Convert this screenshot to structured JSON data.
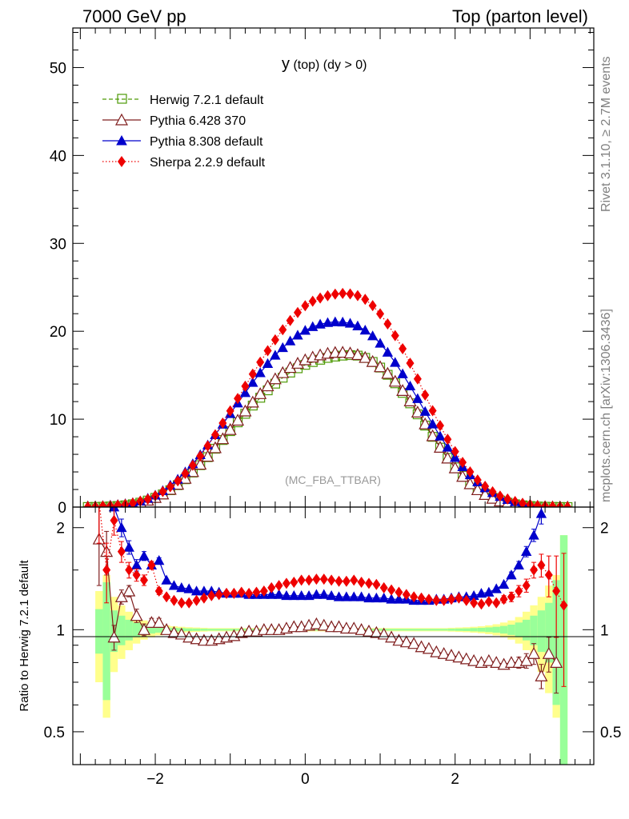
{
  "header": {
    "left": "7000 GeV pp",
    "right": "Top (parton level)"
  },
  "side": {
    "rivet": "Rivet 3.1.10, ≥ 2.7M events",
    "mcplots": "mcplots.cern.ch [arXiv:1306.3436]"
  },
  "colors": {
    "herwig": "#4e9a06",
    "p6": "#7f1d1d",
    "p8": "#0000cc",
    "sherpa": "#ee0000",
    "band_yellow": "#ffff8c",
    "band_green": "#99ff99"
  },
  "chart_data": [
    {
      "type": "line",
      "title": "y (top) (dy > 0)",
      "watermark": "(MC_FBA_TTBAR)",
      "xlim": [
        -3.1,
        3.85
      ],
      "ylim": [
        0,
        54.5
      ],
      "yticks": [
        "0",
        "10",
        "20",
        "30",
        "40",
        "50"
      ],
      "yticks_values": [
        0,
        10,
        20,
        30,
        40,
        50
      ],
      "legend": [
        "Herwig 7.2.1 default",
        "Pythia 6.428 370",
        "Pythia 8.308 default",
        "Sherpa 2.2.9 default"
      ],
      "x": [
        -2.9,
        -2.8,
        -2.7,
        -2.6,
        -2.5,
        -2.4,
        -2.3,
        -2.2,
        -2.1,
        -2.0,
        -1.9,
        -1.8,
        -1.7,
        -1.6,
        -1.5,
        -1.4,
        -1.3,
        -1.2,
        -1.1,
        -1.0,
        -0.9,
        -0.8,
        -0.7,
        -0.6,
        -0.5,
        -0.4,
        -0.3,
        -0.2,
        -0.1,
        0.0,
        0.1,
        0.2,
        0.3,
        0.4,
        0.5,
        0.6,
        0.7,
        0.8,
        0.9,
        1.0,
        1.1,
        1.2,
        1.3,
        1.4,
        1.5,
        1.6,
        1.7,
        1.8,
        1.9,
        2.0,
        2.1,
        2.2,
        2.3,
        2.4,
        2.5,
        2.6,
        2.7,
        2.8,
        2.9,
        3.0,
        3.1,
        3.2,
        3.3,
        3.4,
        3.5
      ],
      "series": [
        {
          "name": "Herwig 7.2.1 default",
          "values": [
            0.01,
            0.02,
            0.04,
            0.07,
            0.12,
            0.2,
            0.32,
            0.5,
            0.74,
            1.05,
            1.44,
            1.92,
            2.5,
            3.17,
            3.93,
            4.77,
            5.68,
            6.64,
            7.63,
            8.64,
            9.64,
            10.61,
            11.55,
            12.44,
            13.28,
            14.04,
            14.72,
            15.3,
            15.79,
            16.18,
            16.5,
            16.76,
            16.97,
            17.12,
            17.23,
            17.29,
            17.23,
            16.97,
            16.51,
            15.87,
            15.05,
            14.08,
            12.99,
            11.8,
            10.55,
            9.27,
            7.99,
            6.76,
            5.59,
            4.52,
            3.57,
            2.75,
            2.07,
            1.51,
            1.07,
            0.74,
            0.5,
            0.32,
            0.2,
            0.12,
            0.07,
            0.04,
            0.02,
            0.01,
            0.0
          ]
        },
        {
          "name": "Pythia 6.428 370",
          "values": [
            0.01,
            0.02,
            0.04,
            0.09,
            0.16,
            0.25,
            0.37,
            0.54,
            0.77,
            1.08,
            1.48,
            2.0,
            2.58,
            3.26,
            4.02,
            4.86,
            5.77,
            6.74,
            7.76,
            8.81,
            9.87,
            10.92,
            11.93,
            12.89,
            13.78,
            14.58,
            15.28,
            15.87,
            16.35,
            16.74,
            17.05,
            17.3,
            17.48,
            17.58,
            17.6,
            17.52,
            17.33,
            17.01,
            16.55,
            15.95,
            15.2,
            14.3,
            13.25,
            12.07,
            10.79,
            9.45,
            8.1,
            6.79,
            5.56,
            4.45,
            3.48,
            2.64,
            1.96,
            1.42,
            0.99,
            0.68,
            0.45,
            0.28,
            0.17,
            0.1,
            0.06,
            0.03,
            0.02,
            0.01,
            0.0
          ]
        },
        {
          "name": "Pythia 8.308 default",
          "values": [
            0.03,
            0.06,
            0.12,
            0.2,
            0.25,
            0.34,
            0.47,
            0.69,
            0.99,
            1.35,
            1.87,
            2.48,
            3.16,
            3.99,
            4.92,
            5.95,
            7.06,
            8.22,
            9.42,
            10.63,
            11.83,
            13.01,
            14.17,
            15.28,
            16.32,
            17.27,
            18.13,
            18.89,
            19.55,
            20.1,
            20.52,
            20.8,
            20.98,
            21.07,
            21.04,
            20.91,
            20.6,
            20.12,
            19.47,
            18.63,
            17.61,
            16.45,
            15.15,
            13.77,
            12.33,
            10.87,
            9.44,
            8.07,
            6.8,
            5.63,
            4.58,
            3.66,
            2.86,
            2.19,
            1.64,
            1.2,
            0.86,
            0.6,
            0.4,
            0.28,
            0.2,
            0.12,
            0.07,
            0.04,
            0.02
          ]
        },
        {
          "name": "Sherpa 2.2.9 default",
          "values": [
            0.02,
            0.05,
            0.1,
            0.14,
            0.22,
            0.3,
            0.45,
            0.67,
            0.9,
            1.28,
            1.76,
            2.31,
            2.98,
            3.82,
            4.75,
            5.8,
            6.96,
            8.22,
            9.55,
            10.94,
            12.35,
            13.75,
            15.13,
            16.48,
            17.79,
            19.03,
            20.18,
            21.22,
            22.13,
            22.9,
            23.42,
            23.78,
            24.04,
            24.22,
            24.3,
            24.25,
            24.05,
            23.63,
            22.92,
            21.98,
            20.84,
            19.51,
            18.02,
            16.37,
            14.58,
            12.75,
            10.96,
            9.27,
            7.71,
            6.31,
            5.08,
            4.0,
            3.08,
            2.36,
            1.74,
            1.25,
            0.92,
            0.64,
            0.43,
            0.28,
            0.17,
            0.11,
            0.07,
            0.04,
            0.02
          ]
        }
      ]
    },
    {
      "type": "line",
      "ylabel": "Ratio to Herwig 7.2.1 default",
      "xlim": [
        -3.1,
        3.85
      ],
      "ylim": [
        0.4,
        2.3
      ],
      "yscale": "log",
      "xticks": [
        "−2",
        "0",
        "2"
      ],
      "xticks_values": [
        -2,
        0,
        2
      ],
      "yticks": [
        "0.5",
        "1",
        "2"
      ],
      "yticks_values": [
        0.5,
        1,
        2
      ],
      "series": [
        {
          "name": "Pythia 6.428 370",
          "x": [
            -2.75,
            -2.65,
            -2.55,
            -2.45,
            -2.35,
            -2.25,
            -2.15,
            -2.05,
            -1.95,
            -1.85,
            -1.75,
            -1.65,
            -1.55,
            -1.45,
            -1.35,
            -1.25,
            -1.15,
            -1.05,
            -0.95,
            -0.85,
            -0.75,
            -0.65,
            -0.55,
            -0.45,
            -0.35,
            -0.25,
            -0.15,
            -0.05,
            0.05,
            0.15,
            0.25,
            0.35,
            0.45,
            0.55,
            0.65,
            0.75,
            0.85,
            0.95,
            1.05,
            1.15,
            1.25,
            1.35,
            1.45,
            1.55,
            1.65,
            1.75,
            1.85,
            1.95,
            2.05,
            2.15,
            2.25,
            2.35,
            2.45,
            2.55,
            2.65,
            2.75,
            2.85,
            2.95,
            3.05,
            3.15,
            3.25,
            3.35
          ],
          "values": [
            1.85,
            1.7,
            0.95,
            1.25,
            1.3,
            1.1,
            1.0,
            1.05,
            1.05,
            1.0,
            0.98,
            0.97,
            0.95,
            0.94,
            0.93,
            0.93,
            0.94,
            0.95,
            0.96,
            0.98,
            0.99,
            0.99,
            1.0,
            1.0,
            1.0,
            1.01,
            1.02,
            1.02,
            1.03,
            1.04,
            1.03,
            1.02,
            1.02,
            1.01,
            1.01,
            1.0,
            0.99,
            0.98,
            0.97,
            0.95,
            0.93,
            0.92,
            0.91,
            0.89,
            0.88,
            0.86,
            0.85,
            0.84,
            0.83,
            0.82,
            0.81,
            0.8,
            0.81,
            0.8,
            0.79,
            0.8,
            0.8,
            0.81,
            0.85,
            0.73,
            0.85,
            0.8
          ],
          "errors": [
            0.5,
            0.25,
            0.08,
            0.06,
            0.05,
            0.05,
            0.04,
            0.03,
            0.03,
            0.02,
            0.02,
            0.02,
            0.02,
            0.01,
            0.01,
            0.01,
            0.01,
            0.01,
            0.01,
            0.01,
            0.01,
            0.01,
            0.01,
            0.01,
            0.01,
            0.01,
            0.01,
            0.01,
            0.01,
            0.01,
            0.01,
            0.01,
            0.01,
            0.01,
            0.01,
            0.01,
            0.01,
            0.01,
            0.01,
            0.01,
            0.01,
            0.01,
            0.01,
            0.01,
            0.01,
            0.01,
            0.01,
            0.01,
            0.01,
            0.01,
            0.01,
            0.01,
            0.01,
            0.02,
            0.02,
            0.02,
            0.03,
            0.04,
            0.06,
            0.06,
            0.1,
            0.15
          ]
        },
        {
          "name": "Pythia 8.308 default",
          "x": [
            -2.55,
            -2.45,
            -2.35,
            -2.25,
            -2.15,
            -2.05,
            -1.95,
            -1.85,
            -1.75,
            -1.65,
            -1.55,
            -1.45,
            -1.35,
            -1.25,
            -1.15,
            -1.05,
            -0.95,
            -0.85,
            -0.75,
            -0.65,
            -0.55,
            -0.45,
            -0.35,
            -0.25,
            -0.15,
            -0.05,
            0.05,
            0.15,
            0.25,
            0.35,
            0.45,
            0.55,
            0.65,
            0.75,
            0.85,
            0.95,
            1.05,
            1.15,
            1.25,
            1.35,
            1.45,
            1.55,
            1.65,
            1.75,
            1.85,
            1.95,
            2.05,
            2.15,
            2.25,
            2.35,
            2.45,
            2.55,
            2.65,
            2.75,
            2.85,
            2.95,
            3.05,
            3.15
          ],
          "values": [
            2.3,
            2.0,
            1.75,
            1.55,
            1.65,
            1.55,
            1.6,
            1.4,
            1.35,
            1.33,
            1.32,
            1.3,
            1.3,
            1.3,
            1.29,
            1.28,
            1.28,
            1.28,
            1.27,
            1.27,
            1.27,
            1.27,
            1.27,
            1.26,
            1.26,
            1.26,
            1.26,
            1.27,
            1.27,
            1.26,
            1.25,
            1.25,
            1.25,
            1.25,
            1.24,
            1.24,
            1.24,
            1.23,
            1.23,
            1.23,
            1.22,
            1.22,
            1.22,
            1.23,
            1.23,
            1.24,
            1.25,
            1.25,
            1.26,
            1.28,
            1.29,
            1.32,
            1.36,
            1.45,
            1.55,
            1.7,
            1.9,
            2.2
          ],
          "errors": [
            0.2,
            0.12,
            0.08,
            0.06,
            0.05,
            0.04,
            0.03,
            0.02,
            0.02,
            0.02,
            0.01,
            0.01,
            0.01,
            0.01,
            0.01,
            0.01,
            0.01,
            0.01,
            0.01,
            0.01,
            0.01,
            0.01,
            0.01,
            0.01,
            0.01,
            0.01,
            0.01,
            0.01,
            0.01,
            0.01,
            0.01,
            0.01,
            0.01,
            0.01,
            0.01,
            0.01,
            0.01,
            0.01,
            0.01,
            0.01,
            0.01,
            0.01,
            0.01,
            0.01,
            0.01,
            0.01,
            0.01,
            0.01,
            0.01,
            0.01,
            0.01,
            0.02,
            0.02,
            0.03,
            0.04,
            0.06,
            0.08,
            0.15
          ]
        },
        {
          "name": "Sherpa 2.2.9 default",
          "x": [
            -2.75,
            -2.65,
            -2.55,
            -2.45,
            -2.35,
            -2.25,
            -2.15,
            -2.05,
            -1.95,
            -1.85,
            -1.75,
            -1.65,
            -1.55,
            -1.45,
            -1.35,
            -1.25,
            -1.15,
            -1.05,
            -0.95,
            -0.85,
            -0.75,
            -0.65,
            -0.55,
            -0.45,
            -0.35,
            -0.25,
            -0.15,
            -0.05,
            0.05,
            0.15,
            0.25,
            0.35,
            0.45,
            0.55,
            0.65,
            0.75,
            0.85,
            0.95,
            1.05,
            1.15,
            1.25,
            1.35,
            1.45,
            1.55,
            1.65,
            1.75,
            1.85,
            1.95,
            2.05,
            2.15,
            2.25,
            2.35,
            2.45,
            2.55,
            2.65,
            2.75,
            2.85,
            2.95,
            3.05,
            3.15,
            3.25,
            3.35,
            3.45
          ],
          "values": [
            2.4,
            1.5,
            2.1,
            1.7,
            1.5,
            1.45,
            1.4,
            1.55,
            1.3,
            1.25,
            1.22,
            1.2,
            1.2,
            1.22,
            1.24,
            1.26,
            1.27,
            1.28,
            1.28,
            1.29,
            1.28,
            1.29,
            1.3,
            1.33,
            1.35,
            1.37,
            1.38,
            1.4,
            1.4,
            1.41,
            1.41,
            1.4,
            1.39,
            1.39,
            1.4,
            1.38,
            1.37,
            1.36,
            1.33,
            1.31,
            1.29,
            1.27,
            1.25,
            1.24,
            1.23,
            1.22,
            1.22,
            1.23,
            1.24,
            1.22,
            1.2,
            1.19,
            1.21,
            1.2,
            1.23,
            1.25,
            1.3,
            1.35,
            1.5,
            1.55,
            1.45,
            1.3,
            1.18
          ],
          "errors": [
            0.6,
            0.3,
            0.2,
            0.12,
            0.08,
            0.06,
            0.05,
            0.04,
            0.03,
            0.02,
            0.02,
            0.02,
            0.01,
            0.01,
            0.01,
            0.01,
            0.01,
            0.01,
            0.01,
            0.01,
            0.01,
            0.01,
            0.01,
            0.01,
            0.01,
            0.01,
            0.01,
            0.01,
            0.01,
            0.01,
            0.01,
            0.01,
            0.01,
            0.01,
            0.01,
            0.01,
            0.01,
            0.01,
            0.01,
            0.01,
            0.01,
            0.01,
            0.01,
            0.01,
            0.01,
            0.01,
            0.01,
            0.01,
            0.01,
            0.01,
            0.01,
            0.01,
            0.02,
            0.02,
            0.03,
            0.04,
            0.05,
            0.06,
            0.08,
            0.12,
            0.2,
            0.35,
            0.5
          ]
        }
      ],
      "band": {
        "x_edges": [
          -2.8,
          -2.7,
          -2.6,
          -2.5,
          -2.4,
          -2.3,
          -2.2,
          -2.1,
          -2.0,
          -1.9,
          -1.8,
          -1.7,
          -1.6,
          -1.5,
          -1.4,
          -1.3,
          1.8,
          1.9,
          2.0,
          2.1,
          2.2,
          2.3,
          2.4,
          2.5,
          2.6,
          2.7,
          2.8,
          2.9,
          3.0,
          3.1,
          3.2,
          3.3,
          3.4,
          3.5
        ],
        "green": [
          0.15,
          0.38,
          0.14,
          0.1,
          0.07,
          0.05,
          0.035,
          0.026,
          0.02,
          0.016,
          0.013,
          0.011,
          0.009,
          0.008,
          0.007,
          0.006,
          0.006,
          0.007,
          0.008,
          0.009,
          0.011,
          0.013,
          0.016,
          0.02,
          0.026,
          0.035,
          0.05,
          0.07,
          0.1,
          0.14,
          0.2,
          0.4,
          0.9
        ],
        "yellow": [
          0.3,
          0.45,
          0.25,
          0.18,
          0.13,
          0.09,
          0.065,
          0.05,
          0.038,
          0.03,
          0.024,
          0.02,
          0.017,
          0.015,
          0.013,
          0.011,
          0.011,
          0.013,
          0.015,
          0.017,
          0.02,
          0.024,
          0.03,
          0.038,
          0.05,
          0.065,
          0.09,
          0.13,
          0.18,
          0.25,
          0.35,
          0.45,
          0.9
        ]
      }
    }
  ]
}
